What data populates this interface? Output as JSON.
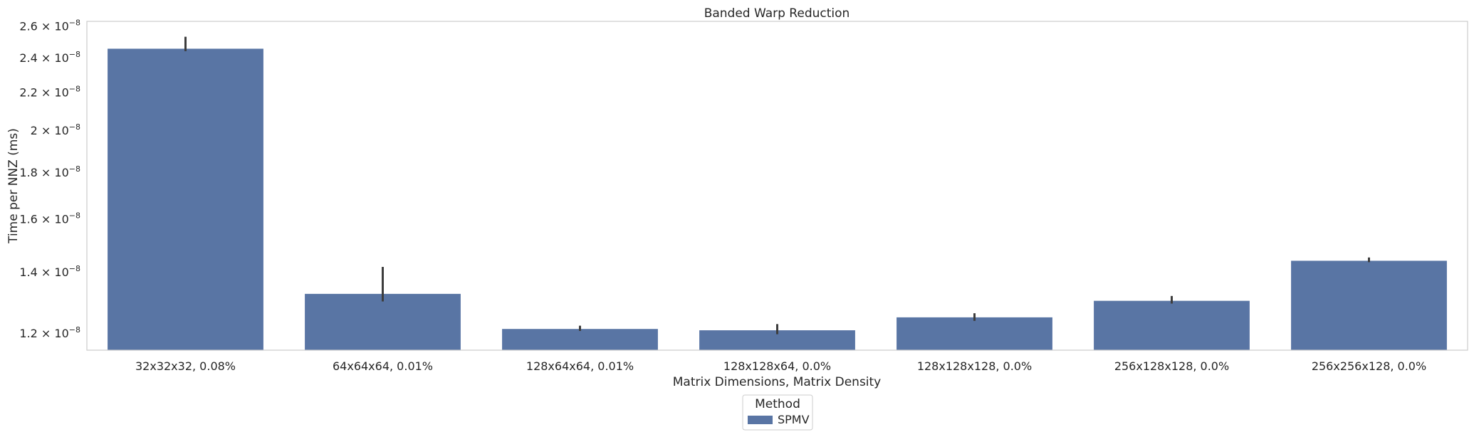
{
  "chart_data": {
    "type": "bar",
    "title": "Banded Warp Reduction",
    "xlabel": "Matrix Dimensions, Matrix Density",
    "ylabel": "Time per NNZ (ms)",
    "yscale": "log",
    "ylim": [
      1.15e-08,
      2.63e-08
    ],
    "grid": false,
    "categories": [
      "32x32x32, 0.08%",
      "64x64x64, 0.01%",
      "128x64x64, 0.01%",
      "128x128x64, 0.0%",
      "128x128x128, 0.0%",
      "256x128x128, 0.0%",
      "256x256x128, 0.0%"
    ],
    "yticks": [
      {
        "value": 1.2e-08,
        "mantissa": "1.2",
        "exp": "−8"
      },
      {
        "value": 1.4e-08,
        "mantissa": "1.4",
        "exp": "−8"
      },
      {
        "value": 1.6e-08,
        "mantissa": "1.6",
        "exp": "−8"
      },
      {
        "value": 1.8e-08,
        "mantissa": "1.8",
        "exp": "−8"
      },
      {
        "value": 2e-08,
        "mantissa": "2",
        "exp": "−8"
      },
      {
        "value": 2.2e-08,
        "mantissa": "2.2",
        "exp": "−8"
      },
      {
        "value": 2.4e-08,
        "mantissa": "2.4",
        "exp": "−8"
      },
      {
        "value": 2.6e-08,
        "mantissa": "2.6",
        "exp": "−8"
      }
    ],
    "series": [
      {
        "name": "SPMV",
        "color": "#5975a4",
        "values": [
          2.455e-08,
          1.325e-08,
          1.213e-08,
          1.209e-08,
          1.249e-08,
          1.302e-08,
          1.44e-08
        ],
        "err_low": [
          2.44e-08,
          1.3e-08,
          1.207e-08,
          1.197e-08,
          1.238e-08,
          1.293e-08,
          1.435e-08
        ],
        "err_high": [
          2.53e-08,
          1.418e-08,
          1.223e-08,
          1.228e-08,
          1.262e-08,
          1.318e-08,
          1.452e-08
        ]
      }
    ],
    "legend": {
      "title": "Method",
      "placement": "bottom-center"
    }
  }
}
